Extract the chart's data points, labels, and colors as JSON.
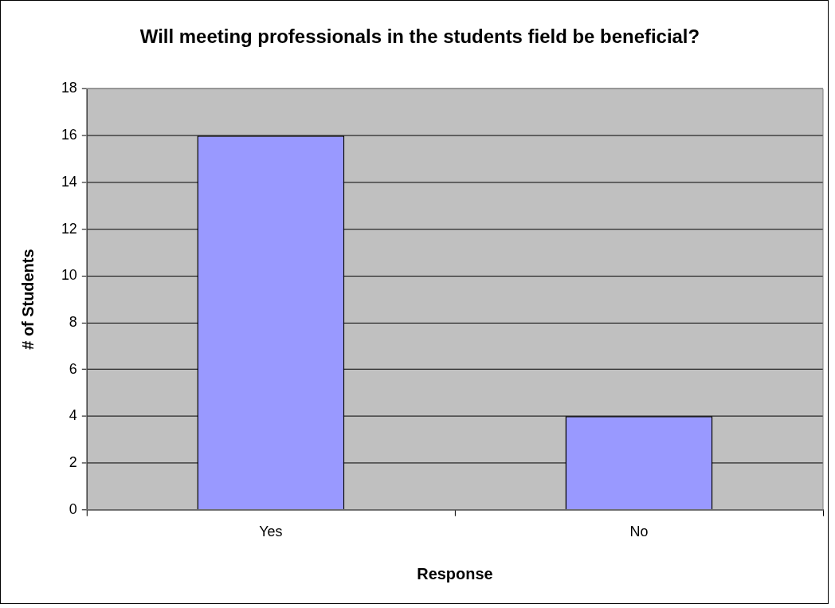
{
  "chart_data": {
    "type": "bar",
    "title": "Will meeting professionals in the students field be beneficial?",
    "xlabel": "Response",
    "ylabel": "# of Students",
    "categories": [
      "Yes",
      "No"
    ],
    "values": [
      16,
      4
    ],
    "color": "#9999ff",
    "ylim": [
      0,
      18
    ],
    "yticks": [
      0,
      2,
      4,
      6,
      8,
      10,
      12,
      14,
      16,
      18
    ],
    "grid": "y"
  }
}
